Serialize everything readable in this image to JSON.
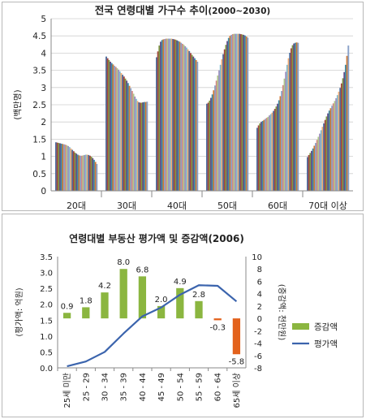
{
  "chart_data": [
    {
      "type": "bar",
      "title_main": "전국 연령대별 가구수 추이",
      "title_period": "(2000~2030)",
      "ylabel": "(백만명)",
      "ylim": [
        0,
        5
      ],
      "yticks": [
        "0",
        "0.5",
        "1",
        "1.5",
        "2",
        "2.5",
        "3",
        "3.5",
        "4",
        "4.5",
        "5"
      ],
      "grid": true,
      "series_colors": [
        "#4f6e9f",
        "#a3463f",
        "#7f9843",
        "#644d86",
        "#3c8ca7",
        "#d07a35",
        "#8aa2c9",
        "#d18a85",
        "#b0c88a",
        "#a08fbf",
        "#80bccf",
        "#f0ac76"
      ],
      "groups": [
        {
          "label": "20대",
          "values": [
            1.41,
            1.4,
            1.39,
            1.38,
            1.37,
            1.36,
            1.35,
            1.34,
            1.32,
            1.3,
            1.27,
            1.23,
            1.19,
            1.15,
            1.11,
            1.08,
            1.05,
            1.03,
            1.02,
            1.02,
            1.03,
            1.04,
            1.05,
            1.05,
            1.04,
            1.02,
            0.99,
            0.95,
            0.9,
            0.84,
            0.78
          ]
        },
        {
          "label": "30대",
          "values": [
            3.9,
            3.85,
            3.8,
            3.75,
            3.71,
            3.67,
            3.63,
            3.6,
            3.56,
            3.52,
            3.47,
            3.42,
            3.37,
            3.32,
            3.26,
            3.2,
            3.13,
            3.05,
            2.98,
            2.9,
            2.82,
            2.74,
            2.67,
            2.61,
            2.57,
            2.56,
            2.56,
            2.57,
            2.58,
            2.58,
            2.59
          ]
        },
        {
          "label": "40대",
          "values": [
            3.88,
            4.05,
            4.22,
            4.33,
            4.38,
            4.4,
            4.41,
            4.42,
            4.42,
            4.42,
            4.42,
            4.42,
            4.41,
            4.4,
            4.39,
            4.37,
            4.35,
            4.33,
            4.3,
            4.27,
            4.24,
            4.2,
            4.16,
            4.11,
            4.06,
            4.0,
            3.95,
            3.9,
            3.85,
            3.8,
            3.75
          ]
        },
        {
          "label": "50대",
          "values": [
            2.53,
            2.56,
            2.62,
            2.7,
            2.8,
            2.92,
            3.06,
            3.2,
            3.35,
            3.5,
            3.66,
            3.82,
            3.97,
            4.11,
            4.24,
            4.35,
            4.44,
            4.5,
            4.53,
            4.55,
            4.56,
            4.56,
            4.56,
            4.56,
            4.56,
            4.55,
            4.54,
            4.53,
            4.51,
            4.48,
            4.45
          ]
        },
        {
          "label": "60대",
          "values": [
            1.83,
            1.9,
            1.96,
            2.0,
            2.03,
            2.06,
            2.09,
            2.12,
            2.15,
            2.19,
            2.23,
            2.27,
            2.32,
            2.38,
            2.45,
            2.53,
            2.63,
            2.75,
            2.9,
            3.07,
            3.26,
            3.46,
            3.66,
            3.85,
            4.01,
            4.14,
            4.23,
            4.28,
            4.3,
            4.31,
            4.3
          ]
        },
        {
          "label": "70대 이상",
          "values": [
            0.98,
            1.04,
            1.1,
            1.16,
            1.23,
            1.31,
            1.39,
            1.48,
            1.57,
            1.66,
            1.76,
            1.86,
            1.96,
            2.06,
            2.16,
            2.25,
            2.33,
            2.4,
            2.47,
            2.54,
            2.61,
            2.69,
            2.78,
            2.88,
            2.99,
            3.12,
            3.27,
            3.45,
            3.66,
            3.92,
            4.22
          ]
        }
      ]
    },
    {
      "type": "bar+line",
      "title": "연령대별 부동산 평가액 및 증감액(2006)",
      "categories": [
        "25세 미만",
        "25 - 29",
        "30 - 34",
        "35 - 39",
        "40 - 44",
        "45 - 49",
        "50 - 54",
        "55 - 59",
        "60 - 64",
        "65세 이상"
      ],
      "left_axis": {
        "label": "(평가액: 억원)",
        "ylim": [
          0,
          3.5
        ],
        "ticks": [
          "0.0",
          "0.5",
          "1.0",
          "1.5",
          "2.0",
          "2.5",
          "3.0",
          "3.5"
        ]
      },
      "right_axis": {
        "label": "(증감액: 천만원)",
        "ylim": [
          -8,
          10
        ],
        "ticks": [
          "-8",
          "-6",
          "-4",
          "-2",
          "0",
          "2",
          "4",
          "6",
          "8",
          "10"
        ]
      },
      "series": [
        {
          "name": "증감액",
          "kind": "bar",
          "axis": "right",
          "color": "#8bb640",
          "neg_color": "#e3621c",
          "values": [
            0.9,
            1.8,
            4.2,
            8.0,
            6.8,
            2.0,
            4.9,
            2.8,
            -0.3,
            -5.8
          ],
          "labels": [
            "0.9",
            "1.8",
            "4.2",
            "8.0",
            "6.8",
            "2.0",
            "4.9",
            "2.8",
            "-0.3",
            "-5.8"
          ]
        },
        {
          "name": "평가액",
          "kind": "line",
          "axis": "left",
          "color": "#3b64ad",
          "values": [
            0.05,
            0.2,
            0.5,
            1.08,
            1.62,
            1.9,
            2.3,
            2.6,
            2.58,
            2.09
          ]
        }
      ],
      "legend_position": "right"
    }
  ]
}
